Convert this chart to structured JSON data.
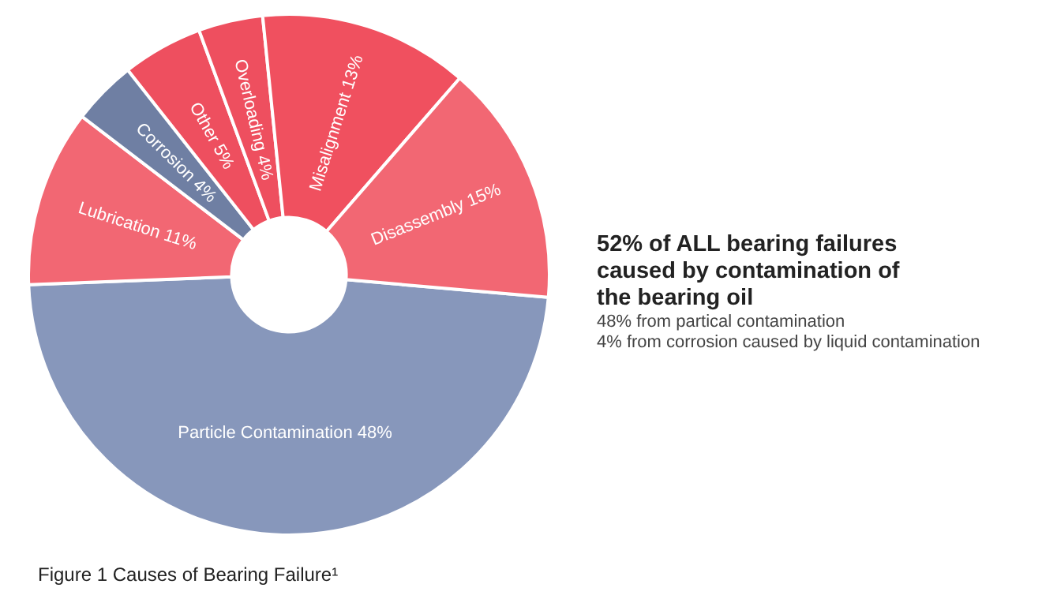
{
  "chart_data": {
    "type": "donut",
    "title": "Figure 1 Causes of Bearing Failure¹",
    "categories": [
      "Particle Contamination",
      "Lubrication",
      "Corrosion",
      "Other",
      "Overloading",
      "Misalignment",
      "Disassembly"
    ],
    "values": [
      48,
      11,
      4,
      5,
      4,
      13,
      15
    ],
    "value_labels": [
      "48%",
      "11%",
      "4%",
      "5%",
      "4%",
      "13%",
      "15%"
    ],
    "colors": [
      "#8797bb",
      "#f26773",
      "#6f7fa3",
      "#ee4f5f",
      "#ee4f5f",
      "#f0505f",
      "#f26773"
    ],
    "legend": false,
    "annotations": [
      "52% of ALL bearing failures caused by contamination of the bearing oil",
      "48% from partical contamination",
      "4% from corrosion caused by liquid contamination"
    ]
  }
}
